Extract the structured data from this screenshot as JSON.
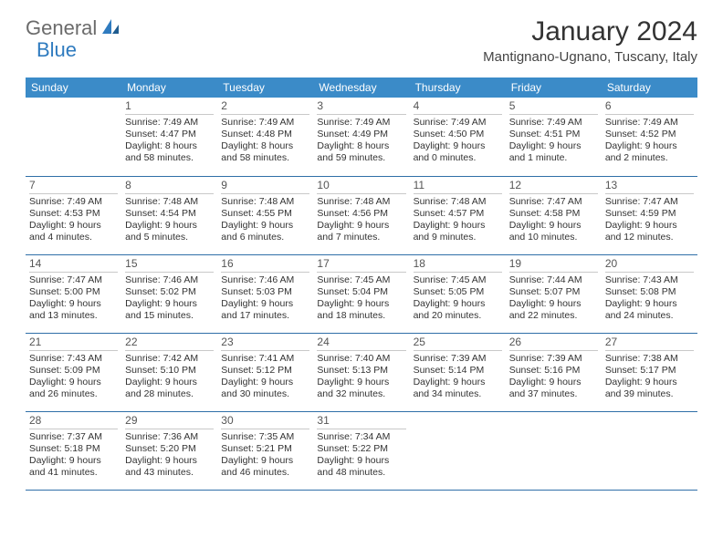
{
  "logo": {
    "part1": "General",
    "part2": "Blue"
  },
  "title": "January 2024",
  "location": "Mantignano-Ugnano, Tuscany, Italy",
  "colors": {
    "header_bg": "#3b8bc8",
    "header_text": "#ffffff",
    "row_border": "#2f6fa8",
    "logo_gray": "#6b6b6b",
    "logo_blue": "#2f7bbf"
  },
  "weekdays": [
    "Sunday",
    "Monday",
    "Tuesday",
    "Wednesday",
    "Thursday",
    "Friday",
    "Saturday"
  ],
  "weeks": [
    [
      null,
      {
        "n": "1",
        "sr": "7:49 AM",
        "ss": "4:47 PM",
        "dl": "8 hours and 58 minutes."
      },
      {
        "n": "2",
        "sr": "7:49 AM",
        "ss": "4:48 PM",
        "dl": "8 hours and 58 minutes."
      },
      {
        "n": "3",
        "sr": "7:49 AM",
        "ss": "4:49 PM",
        "dl": "8 hours and 59 minutes."
      },
      {
        "n": "4",
        "sr": "7:49 AM",
        "ss": "4:50 PM",
        "dl": "9 hours and 0 minutes."
      },
      {
        "n": "5",
        "sr": "7:49 AM",
        "ss": "4:51 PM",
        "dl": "9 hours and 1 minute."
      },
      {
        "n": "6",
        "sr": "7:49 AM",
        "ss": "4:52 PM",
        "dl": "9 hours and 2 minutes."
      }
    ],
    [
      {
        "n": "7",
        "sr": "7:49 AM",
        "ss": "4:53 PM",
        "dl": "9 hours and 4 minutes."
      },
      {
        "n": "8",
        "sr": "7:48 AM",
        "ss": "4:54 PM",
        "dl": "9 hours and 5 minutes."
      },
      {
        "n": "9",
        "sr": "7:48 AM",
        "ss": "4:55 PM",
        "dl": "9 hours and 6 minutes."
      },
      {
        "n": "10",
        "sr": "7:48 AM",
        "ss": "4:56 PM",
        "dl": "9 hours and 7 minutes."
      },
      {
        "n": "11",
        "sr": "7:48 AM",
        "ss": "4:57 PM",
        "dl": "9 hours and 9 minutes."
      },
      {
        "n": "12",
        "sr": "7:47 AM",
        "ss": "4:58 PM",
        "dl": "9 hours and 10 minutes."
      },
      {
        "n": "13",
        "sr": "7:47 AM",
        "ss": "4:59 PM",
        "dl": "9 hours and 12 minutes."
      }
    ],
    [
      {
        "n": "14",
        "sr": "7:47 AM",
        "ss": "5:00 PM",
        "dl": "9 hours and 13 minutes."
      },
      {
        "n": "15",
        "sr": "7:46 AM",
        "ss": "5:02 PM",
        "dl": "9 hours and 15 minutes."
      },
      {
        "n": "16",
        "sr": "7:46 AM",
        "ss": "5:03 PM",
        "dl": "9 hours and 17 minutes."
      },
      {
        "n": "17",
        "sr": "7:45 AM",
        "ss": "5:04 PM",
        "dl": "9 hours and 18 minutes."
      },
      {
        "n": "18",
        "sr": "7:45 AM",
        "ss": "5:05 PM",
        "dl": "9 hours and 20 minutes."
      },
      {
        "n": "19",
        "sr": "7:44 AM",
        "ss": "5:07 PM",
        "dl": "9 hours and 22 minutes."
      },
      {
        "n": "20",
        "sr": "7:43 AM",
        "ss": "5:08 PM",
        "dl": "9 hours and 24 minutes."
      }
    ],
    [
      {
        "n": "21",
        "sr": "7:43 AM",
        "ss": "5:09 PM",
        "dl": "9 hours and 26 minutes."
      },
      {
        "n": "22",
        "sr": "7:42 AM",
        "ss": "5:10 PM",
        "dl": "9 hours and 28 minutes."
      },
      {
        "n": "23",
        "sr": "7:41 AM",
        "ss": "5:12 PM",
        "dl": "9 hours and 30 minutes."
      },
      {
        "n": "24",
        "sr": "7:40 AM",
        "ss": "5:13 PM",
        "dl": "9 hours and 32 minutes."
      },
      {
        "n": "25",
        "sr": "7:39 AM",
        "ss": "5:14 PM",
        "dl": "9 hours and 34 minutes."
      },
      {
        "n": "26",
        "sr": "7:39 AM",
        "ss": "5:16 PM",
        "dl": "9 hours and 37 minutes."
      },
      {
        "n": "27",
        "sr": "7:38 AM",
        "ss": "5:17 PM",
        "dl": "9 hours and 39 minutes."
      }
    ],
    [
      {
        "n": "28",
        "sr": "7:37 AM",
        "ss": "5:18 PM",
        "dl": "9 hours and 41 minutes."
      },
      {
        "n": "29",
        "sr": "7:36 AM",
        "ss": "5:20 PM",
        "dl": "9 hours and 43 minutes."
      },
      {
        "n": "30",
        "sr": "7:35 AM",
        "ss": "5:21 PM",
        "dl": "9 hours and 46 minutes."
      },
      {
        "n": "31",
        "sr": "7:34 AM",
        "ss": "5:22 PM",
        "dl": "9 hours and 48 minutes."
      },
      null,
      null,
      null
    ]
  ]
}
